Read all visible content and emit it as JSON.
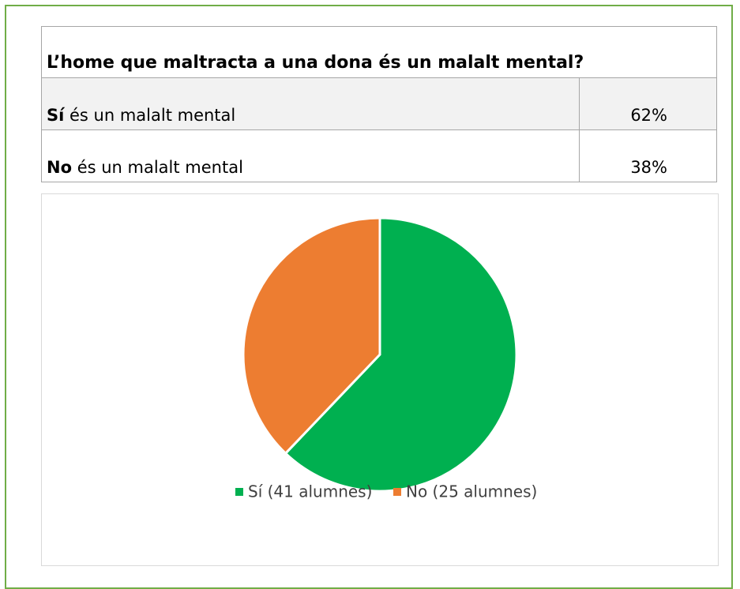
{
  "table": {
    "title": "L’home que maltracta a una dona és un malalt mental?",
    "rows": [
      {
        "bold": "Sí",
        "text": " és un malalt mental",
        "value": "62%"
      },
      {
        "bold": "No",
        "text": " és un malalt mental",
        "value": "38%"
      }
    ]
  },
  "chart_data": {
    "type": "pie",
    "categories": [
      "Sí (41 alumnes)",
      "No (25 alumnes)"
    ],
    "values": [
      41,
      25
    ],
    "colors": [
      "#00b050",
      "#ed7d31"
    ]
  }
}
